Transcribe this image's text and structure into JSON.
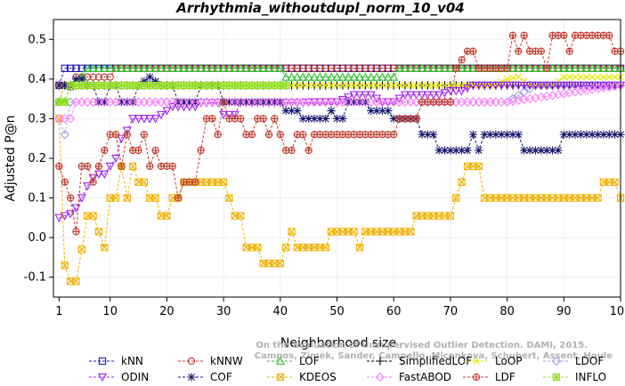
{
  "chart_data": {
    "type": "line",
    "title": "Arrhythmia_withoutdupl_norm_10_v04",
    "xlabel": "Neighborhood size",
    "ylabel": "Adjusted P@n",
    "xlim": [
      0,
      100
    ],
    "ylim": [
      -0.15,
      0.55
    ],
    "xticks": [
      1,
      10,
      20,
      30,
      40,
      50,
      60,
      70,
      80,
      90,
      100
    ],
    "yticks": [
      -0.1,
      0.0,
      0.1,
      0.2,
      0.3,
      0.4,
      0.5
    ],
    "grid": true,
    "legend_position": "bottom",
    "watermark": [
      "Campos, Zimek, Sander, Campello, Micenkova, Schubert, Assent, Houle",
      "On the Evaluation of Unsupervised Outlier Detection. DAMI, 2015."
    ],
    "series": [
      {
        "name": "kNN",
        "color": "#1a1ab8",
        "marker": "square",
        "points": [
          [
            1,
            0.384
          ],
          [
            2,
            0.427
          ],
          [
            3,
            0.427
          ],
          [
            100,
            0.427
          ]
        ]
      },
      {
        "name": "kNNW",
        "color": "#c0392b",
        "marker": "circle",
        "points": [
          [
            1,
            0.384
          ],
          [
            2,
            0.384
          ],
          [
            3,
            0.384
          ],
          [
            4,
            0.405
          ],
          [
            5,
            0.405
          ],
          [
            10,
            0.405
          ],
          [
            11,
            0.427
          ],
          [
            100,
            0.427
          ]
        ]
      },
      {
        "name": "LOF",
        "color": "#2ec02e",
        "marker": "triangle-up",
        "points": [
          [
            1,
            0.342
          ],
          [
            2,
            0.342
          ],
          [
            3,
            0.384
          ],
          [
            5,
            0.405
          ],
          [
            6,
            0.427
          ],
          [
            40,
            0.427
          ],
          [
            41,
            0.405
          ],
          [
            60,
            0.405
          ],
          [
            61,
            0.427
          ],
          [
            100,
            0.427
          ]
        ]
      },
      {
        "name": "SimplifiedLOF",
        "color": "#000000",
        "marker": "plus",
        "points": [
          [
            1,
            0.342
          ],
          [
            2,
            0.384
          ],
          [
            40,
            0.384
          ],
          [
            41,
            0.384
          ],
          [
            100,
            0.384
          ]
        ]
      },
      {
        "name": "LoOP",
        "color": "#e6e600",
        "marker": "x",
        "points": [
          [
            1,
            0.342
          ],
          [
            2,
            0.384
          ],
          [
            40,
            0.384
          ],
          [
            75,
            0.384
          ],
          [
            78,
            0.384
          ],
          [
            80,
            0.4
          ],
          [
            82,
            0.405
          ],
          [
            84,
            0.384
          ],
          [
            86,
            0.384
          ],
          [
            88,
            0.384
          ],
          [
            90,
            0.405
          ],
          [
            100,
            0.405
          ]
        ]
      },
      {
        "name": "LDOF",
        "color": "#a0a0e0",
        "marker": "diamond",
        "points": [
          [
            1,
            0.3
          ],
          [
            2,
            0.26
          ],
          [
            3,
            0.342
          ],
          [
            4,
            0.342
          ],
          [
            5,
            0.342
          ],
          [
            10,
            0.342
          ],
          [
            20,
            0.342
          ],
          [
            40,
            0.342
          ],
          [
            60,
            0.342
          ],
          [
            80,
            0.342
          ],
          [
            85,
            0.384
          ],
          [
            100,
            0.384
          ]
        ]
      },
      {
        "name": "ODIN",
        "color": "#a020f0",
        "marker": "triangle-down",
        "points": [
          [
            1,
            0.05
          ],
          [
            2,
            0.055
          ],
          [
            3,
            0.06
          ],
          [
            4,
            0.075
          ],
          [
            5,
            0.1
          ],
          [
            6,
            0.13
          ],
          [
            7,
            0.15
          ],
          [
            8,
            0.16
          ],
          [
            9,
            0.16
          ],
          [
            10,
            0.18
          ],
          [
            11,
            0.2
          ],
          [
            12,
            0.25
          ],
          [
            13,
            0.27
          ],
          [
            14,
            0.3
          ],
          [
            18,
            0.3
          ],
          [
            19,
            0.31
          ],
          [
            20,
            0.32
          ],
          [
            21,
            0.33
          ],
          [
            25,
            0.33
          ],
          [
            26,
            0.34
          ],
          [
            29,
            0.34
          ],
          [
            30,
            0.31
          ],
          [
            32,
            0.31
          ],
          [
            33,
            0.34
          ],
          [
            40,
            0.34
          ],
          [
            41,
            0.34
          ],
          [
            44,
            0.34
          ],
          [
            46,
            0.342
          ],
          [
            50,
            0.342
          ],
          [
            53,
            0.36
          ],
          [
            56,
            0.36
          ],
          [
            58,
            0.342
          ],
          [
            60,
            0.342
          ],
          [
            62,
            0.36
          ],
          [
            68,
            0.36
          ],
          [
            70,
            0.37
          ],
          [
            72,
            0.37
          ],
          [
            74,
            0.384
          ],
          [
            80,
            0.384
          ],
          [
            90,
            0.384
          ],
          [
            100,
            0.384
          ]
        ]
      },
      {
        "name": "COF",
        "color": "#191970",
        "marker": "asterisk",
        "points": [
          [
            1,
            0.384
          ],
          [
            2,
            0.384
          ],
          [
            3,
            0.38
          ],
          [
            4,
            0.4
          ],
          [
            5,
            0.4
          ],
          [
            6,
            0.384
          ],
          [
            7,
            0.384
          ],
          [
            8,
            0.342
          ],
          [
            9,
            0.342
          ],
          [
            10,
            0.384
          ],
          [
            11,
            0.384
          ],
          [
            12,
            0.342
          ],
          [
            14,
            0.342
          ],
          [
            15,
            0.384
          ],
          [
            17,
            0.405
          ],
          [
            19,
            0.384
          ],
          [
            21,
            0.384
          ],
          [
            22,
            0.342
          ],
          [
            25,
            0.342
          ],
          [
            26,
            0.384
          ],
          [
            29,
            0.384
          ],
          [
            30,
            0.342
          ],
          [
            40,
            0.342
          ],
          [
            41,
            0.32
          ],
          [
            43,
            0.32
          ],
          [
            44,
            0.3
          ],
          [
            48,
            0.3
          ],
          [
            49,
            0.32
          ],
          [
            50,
            0.3
          ],
          [
            51,
            0.3
          ],
          [
            52,
            0.342
          ],
          [
            55,
            0.342
          ],
          [
            56,
            0.32
          ],
          [
            59,
            0.32
          ],
          [
            60,
            0.3
          ],
          [
            62,
            0.3
          ],
          [
            63,
            0.3
          ],
          [
            64,
            0.3
          ],
          [
            65,
            0.26
          ],
          [
            67,
            0.26
          ],
          [
            68,
            0.22
          ],
          [
            73,
            0.22
          ],
          [
            74,
            0.26
          ],
          [
            75,
            0.22
          ],
          [
            76,
            0.26
          ],
          [
            82,
            0.26
          ],
          [
            83,
            0.22
          ],
          [
            89,
            0.22
          ],
          [
            90,
            0.26
          ],
          [
            100,
            0.26
          ]
        ]
      },
      {
        "name": "KDEOS",
        "color": "#f0b000",
        "marker": "square-x",
        "points": [
          [
            1,
            0.3
          ],
          [
            2,
            -0.07
          ],
          [
            3,
            -0.11
          ],
          [
            4,
            -0.11
          ],
          [
            5,
            -0.03
          ],
          [
            6,
            0.055
          ],
          [
            7,
            0.055
          ],
          [
            8,
            0.015
          ],
          [
            9,
            -0.025
          ],
          [
            10,
            0.1
          ],
          [
            11,
            0.1
          ],
          [
            12,
            0.18
          ],
          [
            13,
            0.1
          ],
          [
            14,
            0.18
          ],
          [
            15,
            0.14
          ],
          [
            16,
            0.14
          ],
          [
            17,
            0.1
          ],
          [
            18,
            0.1
          ],
          [
            19,
            0.055
          ],
          [
            20,
            0.055
          ],
          [
            21,
            0.1
          ],
          [
            22,
            0.1
          ],
          [
            23,
            0.14
          ],
          [
            30,
            0.14
          ],
          [
            31,
            0.1
          ],
          [
            32,
            0.055
          ],
          [
            33,
            0.055
          ],
          [
            34,
            -0.025
          ],
          [
            36,
            -0.025
          ],
          [
            37,
            -0.065
          ],
          [
            40,
            -0.065
          ],
          [
            41,
            -0.025
          ],
          [
            42,
            0.015
          ],
          [
            43,
            -0.025
          ],
          [
            48,
            -0.025
          ],
          [
            49,
            0.015
          ],
          [
            53,
            0.015
          ],
          [
            54,
            -0.025
          ],
          [
            55,
            0.015
          ],
          [
            63,
            0.015
          ],
          [
            64,
            0.055
          ],
          [
            70,
            0.055
          ],
          [
            71,
            0.1
          ],
          [
            72,
            0.14
          ],
          [
            73,
            0.18
          ],
          [
            75,
            0.18
          ],
          [
            76,
            0.1
          ],
          [
            96,
            0.1
          ],
          [
            97,
            0.14
          ],
          [
            99,
            0.14
          ],
          [
            100,
            0.1
          ]
        ]
      },
      {
        "name": "FastABOD",
        "color": "#ff80ff",
        "marker": "diamond",
        "points": [
          [
            1,
            0.3
          ],
          [
            2,
            0.3
          ],
          [
            3,
            0.3
          ],
          [
            4,
            0.342
          ],
          [
            10,
            0.342
          ],
          [
            40,
            0.342
          ],
          [
            60,
            0.342
          ],
          [
            78,
            0.342
          ],
          [
            79,
            0.342
          ],
          [
            80,
            0.342
          ],
          [
            100,
            0.384
          ]
        ]
      },
      {
        "name": "LDF",
        "color": "#c0392b",
        "marker": "circle-plus",
        "points": [
          [
            1,
            0.18
          ],
          [
            2,
            0.14
          ],
          [
            3,
            0.1
          ],
          [
            4,
            0.015
          ],
          [
            5,
            0.18
          ],
          [
            6,
            0.18
          ],
          [
            7,
            0.14
          ],
          [
            8,
            0.18
          ],
          [
            9,
            0.22
          ],
          [
            10,
            0.26
          ],
          [
            11,
            0.26
          ],
          [
            12,
            0.18
          ],
          [
            13,
            0.26
          ],
          [
            14,
            0.22
          ],
          [
            15,
            0.22
          ],
          [
            16,
            0.26
          ],
          [
            17,
            0.18
          ],
          [
            18,
            0.22
          ],
          [
            19,
            0.18
          ],
          [
            20,
            0.18
          ],
          [
            21,
            0.18
          ],
          [
            22,
            0.1
          ],
          [
            23,
            0.14
          ],
          [
            24,
            0.14
          ],
          [
            25,
            0.14
          ],
          [
            26,
            0.22
          ],
          [
            27,
            0.3
          ],
          [
            28,
            0.3
          ],
          [
            29,
            0.26
          ],
          [
            30,
            0.342
          ],
          [
            31,
            0.3
          ],
          [
            32,
            0.3
          ],
          [
            33,
            0.3
          ],
          [
            34,
            0.26
          ],
          [
            35,
            0.26
          ],
          [
            36,
            0.3
          ],
          [
            37,
            0.3
          ],
          [
            38,
            0.26
          ],
          [
            39,
            0.3
          ],
          [
            40,
            0.26
          ],
          [
            41,
            0.22
          ],
          [
            42,
            0.22
          ],
          [
            43,
            0.26
          ],
          [
            44,
            0.26
          ],
          [
            45,
            0.22
          ],
          [
            46,
            0.26
          ],
          [
            60,
            0.26
          ],
          [
            61,
            0.3
          ],
          [
            62,
            0.3
          ],
          [
            63,
            0.3
          ],
          [
            64,
            0.3
          ],
          [
            65,
            0.342
          ],
          [
            66,
            0.342
          ],
          [
            67,
            0.342
          ],
          [
            70,
            0.342
          ],
          [
            71,
            0.427
          ],
          [
            73,
            0.47
          ],
          [
            74,
            0.47
          ],
          [
            75,
            0.427
          ],
          [
            80,
            0.427
          ],
          [
            81,
            0.51
          ],
          [
            82,
            0.47
          ],
          [
            83,
            0.51
          ],
          [
            84,
            0.47
          ],
          [
            86,
            0.47
          ],
          [
            87,
            0.427
          ],
          [
            88,
            0.51
          ],
          [
            90,
            0.51
          ],
          [
            91,
            0.47
          ],
          [
            92,
            0.51
          ],
          [
            98,
            0.51
          ],
          [
            99,
            0.47
          ],
          [
            100,
            0.47
          ]
        ]
      },
      {
        "name": "INFLO",
        "color": "#90e020",
        "marker": "square-star",
        "points": [
          [
            1,
            0.342
          ],
          [
            2,
            0.342
          ],
          [
            3,
            0.384
          ],
          [
            40,
            0.384
          ],
          [
            41,
            0.384
          ]
        ]
      }
    ]
  }
}
